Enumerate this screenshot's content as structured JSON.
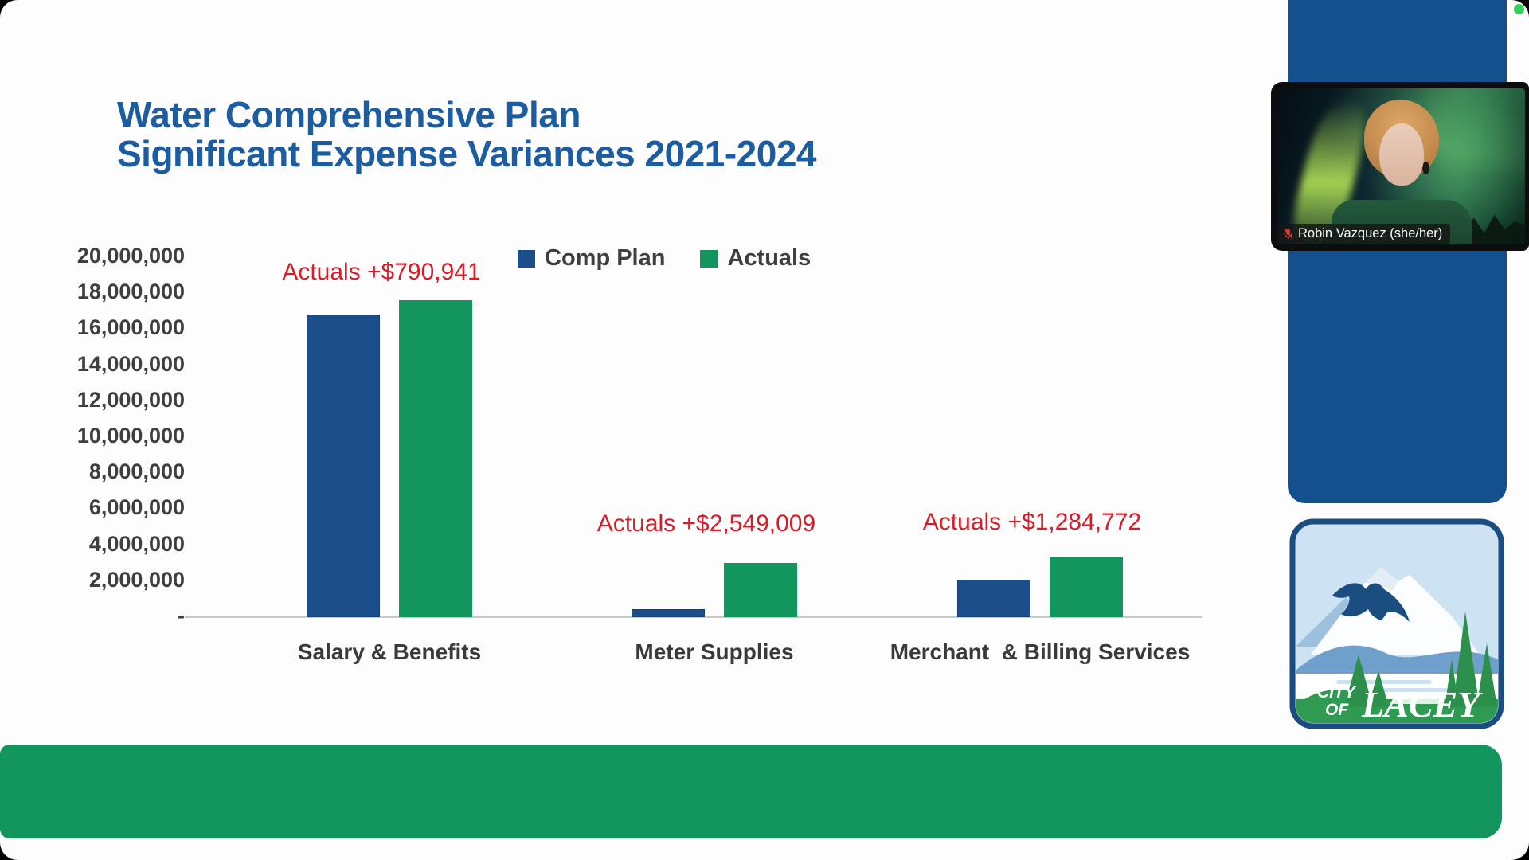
{
  "slide": {
    "title_line1": "Water Comprehensive Plan",
    "title_line2": "Significant Expense Variances 2021-2024"
  },
  "chart_data": {
    "type": "bar",
    "title": "Water Comprehensive Plan Significant Expense Variances 2021-2024",
    "categories": [
      "Salary & Benefits",
      "Meter Supplies",
      "Merchant  & Billing Services"
    ],
    "series": [
      {
        "name": "Comp Plan",
        "color": "#1c4e8a",
        "values": [
          16800000,
          440000,
          2080000
        ]
      },
      {
        "name": "Actuals",
        "color": "#12965e",
        "values": [
          17590941,
          2989009,
          3364772
        ]
      }
    ],
    "annotations": [
      {
        "text": "Actuals +$790,941",
        "category_index": 0
      },
      {
        "text": "Actuals +$2,549,009",
        "category_index": 1
      },
      {
        "text": "Actuals +$1,284,772",
        "category_index": 2
      }
    ],
    "ylim": [
      0,
      20000000
    ],
    "yticks": [
      {
        "value": 20000000,
        "label": "20,000,000"
      },
      {
        "value": 18000000,
        "label": "18,000,000"
      },
      {
        "value": 16000000,
        "label": "16,000,000"
      },
      {
        "value": 14000000,
        "label": "14,000,000"
      },
      {
        "value": 12000000,
        "label": "12,000,000"
      },
      {
        "value": 10000000,
        "label": "10,000,000"
      },
      {
        "value": 8000000,
        "label": "8,000,000"
      },
      {
        "value": 6000000,
        "label": "6,000,000"
      },
      {
        "value": 4000000,
        "label": "4,000,000"
      },
      {
        "value": 2000000,
        "label": "2,000,000"
      },
      {
        "value": 0,
        "label": "-"
      }
    ],
    "legend_position": "top",
    "grid": false
  },
  "webcam": {
    "name_label": "Robin Vazquez (she/her)",
    "mic_icon": "muted-mic-icon",
    "status_dot_color": "#34d058"
  },
  "logo": {
    "city": "CITY",
    "of": "OF",
    "lacey": "LACEY"
  },
  "colors": {
    "accent_blue": "#15508e",
    "accent_green": "#12965e",
    "bar_blue": "#1c4e8a",
    "bar_green": "#12965e",
    "title_blue": "#1c5ca1",
    "annotation_red": "#da1b28"
  }
}
